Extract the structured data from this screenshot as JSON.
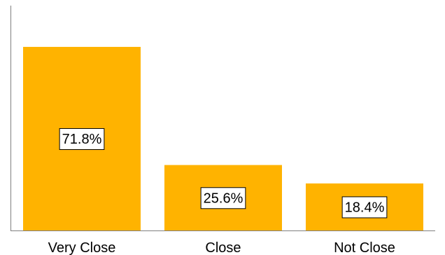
{
  "chart_data": {
    "type": "bar",
    "categories": [
      "Very Close",
      "Close",
      "Not Close"
    ],
    "values": [
      71.8,
      25.6,
      18.4
    ],
    "value_labels": [
      "71.8%",
      "25.6%",
      "18.4%"
    ],
    "ylim": [
      0,
      80
    ],
    "grid": false,
    "bar_color": "#FFB300"
  }
}
